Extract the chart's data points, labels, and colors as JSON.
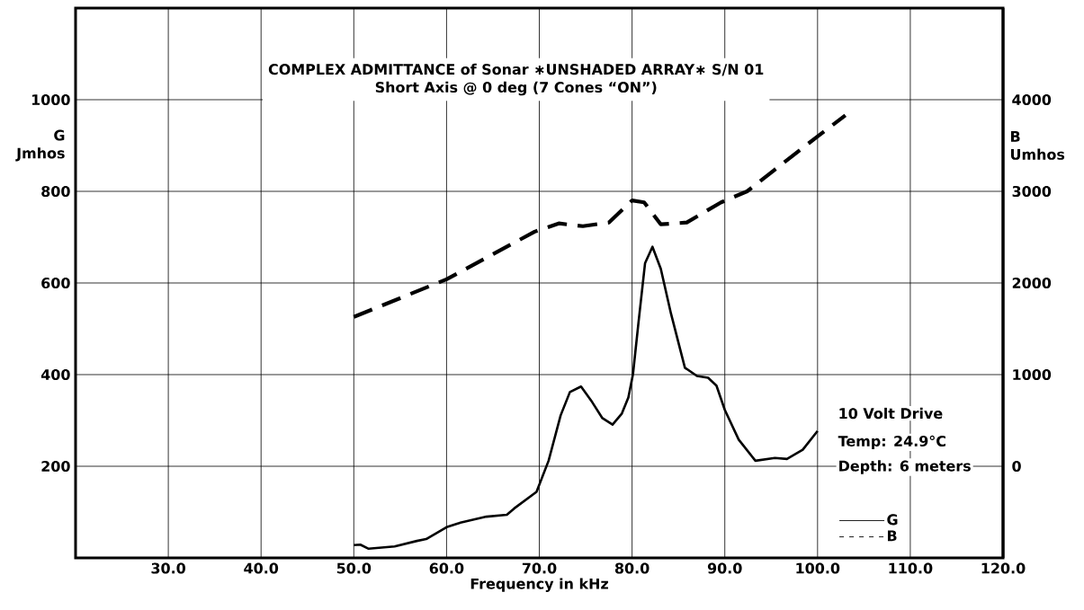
{
  "chart_data": {
    "type": "line",
    "title": "COMPLEX ADMITTANCE of Sonar ∗UNSHADED ARRAY∗  S/N 01",
    "subtitle": "Short Axis @ 0 deg (7 Cones “ON”)",
    "xlabel": "Frequency in kHz",
    "ylabel": "G Jmhos",
    "y2label": "B Umhos",
    "annotations": [
      "10 Volt Drive",
      "Temp: 24.9°C",
      "Depth: 6 meters"
    ],
    "xlim": [
      20,
      120
    ],
    "ylim": [
      0,
      1200
    ],
    "y2lim": [
      -1000,
      5000
    ],
    "xticks": [
      {
        "value": 30,
        "label": "30.0"
      },
      {
        "value": 40,
        "label": "40.0"
      },
      {
        "value": 50,
        "label": "50.0"
      },
      {
        "value": 60,
        "label": "60.0"
      },
      {
        "value": 70,
        "label": "70.0"
      },
      {
        "value": 80,
        "label": "80.0"
      },
      {
        "value": 90,
        "label": "90.0"
      },
      {
        "value": 100,
        "label": "100.0"
      },
      {
        "value": 110,
        "label": "110.0"
      },
      {
        "value": 120,
        "label": "120.0"
      }
    ],
    "yticks": [
      200,
      400,
      600,
      800,
      1000
    ],
    "y2ticks": [
      0,
      1000,
      2000,
      3000,
      4000
    ],
    "grid": true,
    "legend": "bottom right",
    "series": [
      {
        "name": "G",
        "color": "#000000",
        "line_style": "solid",
        "x": [
          50.0,
          50.7,
          51.6,
          54.4,
          56.8,
          57.8,
          60.0,
          61.5,
          64.3,
          66.5,
          67.3,
          69.7,
          71.0,
          72.3,
          73.3,
          74.5,
          75.7,
          76.8,
          77.9,
          78.9,
          79.6,
          80.1,
          80.7,
          81.4,
          82.2,
          83.1,
          84.2,
          85.7,
          87.0,
          88.2,
          89.1,
          90.0,
          91.5,
          93.3,
          95.4,
          96.7,
          98.4,
          100.0
        ],
        "values": [
          28,
          29,
          20,
          25,
          37,
          41,
          67,
          77,
          90,
          94,
          108,
          144,
          212,
          311,
          362,
          374,
          340,
          305,
          291,
          315,
          350,
          401,
          515,
          643,
          679,
          631,
          533,
          415,
          397,
          393,
          376,
          323,
          258,
          212,
          218,
          216,
          236,
          277
        ]
      },
      {
        "name": "B",
        "color": "#000000",
        "line_style": "dashed",
        "axis": "y2",
        "x": [
          50.0,
          60.0,
          69.5,
          72.1,
          74.7,
          77.5,
          80.0,
          81.3,
          83.1,
          85.9,
          89.6,
          92.4,
          95.3,
          100.0,
          103.0
        ],
        "values": [
          1630,
          2040,
          2560,
          2650,
          2620,
          2660,
          2900,
          2880,
          2640,
          2660,
          2880,
          3000,
          3230,
          3600,
          3830
        ]
      }
    ]
  }
}
